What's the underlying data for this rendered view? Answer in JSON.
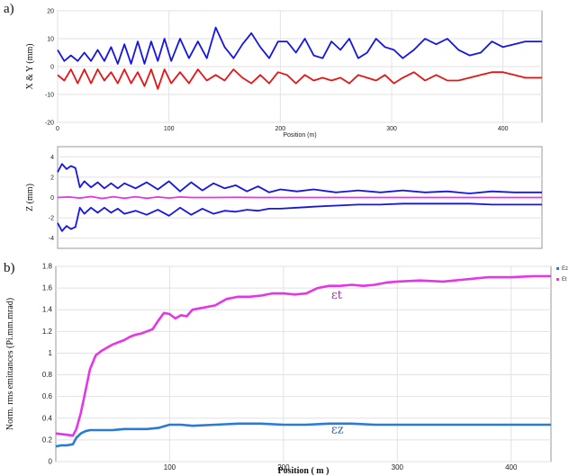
{
  "panel_labels": {
    "a": "a)",
    "b": "b)"
  },
  "chart_data": [
    {
      "id": "xy",
      "type": "line",
      "xlabel": "Position (m)",
      "ylabel": "X & Y (mm)",
      "xlim": [
        0,
        435
      ],
      "ylim": [
        -20,
        20
      ],
      "xticks": [
        0,
        100,
        200,
        300,
        400
      ],
      "yticks": [
        -20,
        -10,
        0,
        10,
        20
      ],
      "grid": true,
      "series": [
        {
          "color": "#1515e6",
          "x": [
            0,
            6,
            12,
            18,
            24,
            30,
            36,
            42,
            48,
            54,
            60,
            66,
            72,
            78,
            84,
            90,
            96,
            102,
            110,
            118,
            126,
            134,
            142,
            150,
            158,
            166,
            174,
            182,
            190,
            198,
            206,
            214,
            222,
            230,
            238,
            246,
            254,
            262,
            270,
            278,
            286,
            294,
            302,
            310,
            320,
            330,
            340,
            350,
            360,
            370,
            380,
            390,
            400,
            410,
            420,
            435
          ],
          "y": [
            6,
            2,
            4,
            2,
            5,
            2,
            6,
            2,
            7,
            1,
            8,
            1,
            9,
            1,
            9,
            2,
            10,
            2,
            10,
            3,
            9,
            3,
            14,
            7,
            3,
            8,
            12,
            7,
            3,
            9,
            9,
            5,
            10,
            4,
            3,
            9,
            6,
            10,
            3,
            5,
            10,
            7,
            6,
            3,
            6,
            10,
            8,
            10,
            6,
            4,
            5,
            9,
            7,
            8,
            9,
            9
          ]
        },
        {
          "color": "#e61515",
          "x": [
            0,
            6,
            12,
            18,
            24,
            30,
            36,
            42,
            48,
            54,
            60,
            66,
            72,
            78,
            84,
            90,
            96,
            102,
            110,
            118,
            126,
            134,
            142,
            150,
            158,
            166,
            174,
            182,
            190,
            198,
            206,
            214,
            222,
            230,
            238,
            246,
            254,
            262,
            270,
            278,
            286,
            294,
            302,
            310,
            320,
            330,
            340,
            350,
            360,
            370,
            380,
            390,
            400,
            410,
            420,
            435
          ],
          "y": [
            -3,
            -5,
            -1,
            -6,
            -1,
            -6,
            -1,
            -5,
            -2,
            -6,
            -1,
            -6,
            -2,
            -7,
            -1,
            -8,
            -1,
            -6,
            -2,
            -6,
            -1,
            -5,
            -3,
            -5,
            -1,
            -4,
            -6,
            -3,
            -6,
            -2,
            -3,
            -6,
            -3,
            -5,
            -4,
            -5,
            -4,
            -6,
            -3,
            -4,
            -5,
            -3,
            -6,
            -4,
            -2,
            -5,
            -3,
            -5,
            -5,
            -4,
            -3,
            -2,
            -2,
            -3,
            -4,
            -4
          ]
        }
      ]
    },
    {
      "id": "z",
      "type": "line",
      "xlabel": "",
      "ylabel": "Z (mm)",
      "xlim": [
        0,
        435
      ],
      "ylim": [
        -5,
        5
      ],
      "yticks": [
        -4,
        -2,
        0,
        2,
        4
      ],
      "grid": true,
      "series": [
        {
          "color": "#1515e6",
          "x": [
            0,
            4,
            8,
            12,
            16,
            20,
            24,
            30,
            36,
            42,
            48,
            54,
            60,
            70,
            80,
            90,
            100,
            110,
            120,
            130,
            140,
            150,
            160,
            170,
            180,
            190,
            200,
            215,
            230,
            250,
            270,
            290,
            310,
            330,
            350,
            370,
            390,
            410,
            435
          ],
          "y": [
            2.5,
            3.3,
            2.8,
            3.1,
            2.9,
            1.0,
            1.6,
            1.0,
            1.5,
            0.9,
            1.4,
            0.9,
            1.4,
            0.9,
            1.5,
            0.8,
            1.6,
            0.6,
            1.5,
            0.7,
            1.4,
            0.9,
            1.2,
            0.6,
            1.1,
            0.5,
            0.8,
            0.6,
            0.8,
            0.5,
            0.7,
            0.5,
            0.7,
            0.5,
            0.6,
            0.4,
            0.6,
            0.5,
            0.5
          ]
        },
        {
          "color": "#1515e6",
          "x": [
            0,
            4,
            8,
            12,
            16,
            20,
            24,
            30,
            36,
            42,
            48,
            54,
            60,
            70,
            80,
            90,
            100,
            110,
            120,
            130,
            140,
            150,
            160,
            170,
            180,
            190,
            200,
            215,
            230,
            250,
            270,
            290,
            310,
            330,
            350,
            370,
            390,
            410,
            435
          ],
          "y": [
            -2.5,
            -3.3,
            -2.8,
            -3.1,
            -2.9,
            -1.0,
            -1.6,
            -1.0,
            -1.5,
            -1.0,
            -1.5,
            -1.1,
            -1.6,
            -1.3,
            -1.7,
            -1.2,
            -1.8,
            -1.0,
            -1.7,
            -1.1,
            -1.6,
            -1.3,
            -1.4,
            -1.2,
            -1.3,
            -1.1,
            -1.1,
            -1.0,
            -0.9,
            -0.8,
            -0.7,
            -0.7,
            -0.6,
            -0.6,
            -0.6,
            -0.6,
            -0.7,
            -0.7,
            -0.7
          ]
        },
        {
          "color": "#e635e6",
          "x": [
            0,
            10,
            20,
            30,
            40,
            50,
            60,
            70,
            80,
            90,
            100,
            110,
            120,
            140,
            160,
            180,
            200,
            240,
            280,
            320,
            360,
            400,
            435
          ],
          "y": [
            0,
            0.05,
            -0.05,
            0.1,
            -0.1,
            0.08,
            -0.08,
            0.08,
            -0.08,
            0.05,
            -0.05,
            0.05,
            0,
            0,
            0.02,
            0,
            0,
            0,
            0,
            0,
            0,
            0,
            0
          ]
        }
      ]
    },
    {
      "id": "emittance",
      "type": "line",
      "xlabel": "Position ( m )",
      "ylabel": "Norm. rms emittances (Pi.mm.mrad)",
      "xlim": [
        0,
        435
      ],
      "ylim": [
        0,
        1.8
      ],
      "xticks": [
        100,
        200,
        300,
        400
      ],
      "yticks": [
        0,
        0.2,
        0.4,
        0.6,
        0.8,
        1,
        1.2,
        1.4,
        1.6,
        1.8
      ],
      "grid": true,
      "legend_entries": [
        "Ez",
        "Et"
      ],
      "annotations": [
        {
          "text": "εt",
          "x": 242,
          "y": 1.5,
          "color": "#b023b0"
        },
        {
          "text": "εz",
          "x": 242,
          "y": 0.26,
          "color": "#1f5fb8"
        }
      ],
      "series": [
        {
          "color": "#e635e6",
          "x": [
            0,
            8,
            15,
            18,
            22,
            26,
            30,
            35,
            40,
            45,
            50,
            55,
            60,
            65,
            70,
            75,
            80,
            85,
            90,
            95,
            100,
            105,
            110,
            115,
            120,
            130,
            140,
            150,
            160,
            170,
            180,
            190,
            200,
            210,
            220,
            230,
            240,
            250,
            260,
            270,
            280,
            290,
            300,
            320,
            340,
            360,
            380,
            400,
            420,
            435
          ],
          "y": [
            0.26,
            0.25,
            0.24,
            0.3,
            0.45,
            0.65,
            0.85,
            0.98,
            1.02,
            1.05,
            1.08,
            1.1,
            1.12,
            1.15,
            1.17,
            1.18,
            1.2,
            1.22,
            1.3,
            1.37,
            1.36,
            1.32,
            1.35,
            1.34,
            1.4,
            1.42,
            1.44,
            1.5,
            1.52,
            1.52,
            1.53,
            1.55,
            1.55,
            1.54,
            1.55,
            1.6,
            1.62,
            1.62,
            1.63,
            1.62,
            1.63,
            1.65,
            1.66,
            1.67,
            1.66,
            1.68,
            1.7,
            1.7,
            1.71,
            1.71
          ]
        },
        {
          "color": "#2a7ad8",
          "x": [
            0,
            5,
            10,
            15,
            18,
            22,
            26,
            30,
            40,
            50,
            60,
            70,
            80,
            90,
            100,
            110,
            120,
            140,
            160,
            180,
            200,
            220,
            240,
            260,
            280,
            300,
            320,
            340,
            360,
            380,
            400,
            420,
            435
          ],
          "y": [
            0.14,
            0.15,
            0.15,
            0.16,
            0.22,
            0.26,
            0.28,
            0.29,
            0.29,
            0.29,
            0.3,
            0.3,
            0.3,
            0.31,
            0.34,
            0.34,
            0.33,
            0.34,
            0.35,
            0.35,
            0.34,
            0.34,
            0.35,
            0.35,
            0.34,
            0.34,
            0.34,
            0.34,
            0.34,
            0.34,
            0.34,
            0.34,
            0.34
          ]
        }
      ]
    }
  ]
}
